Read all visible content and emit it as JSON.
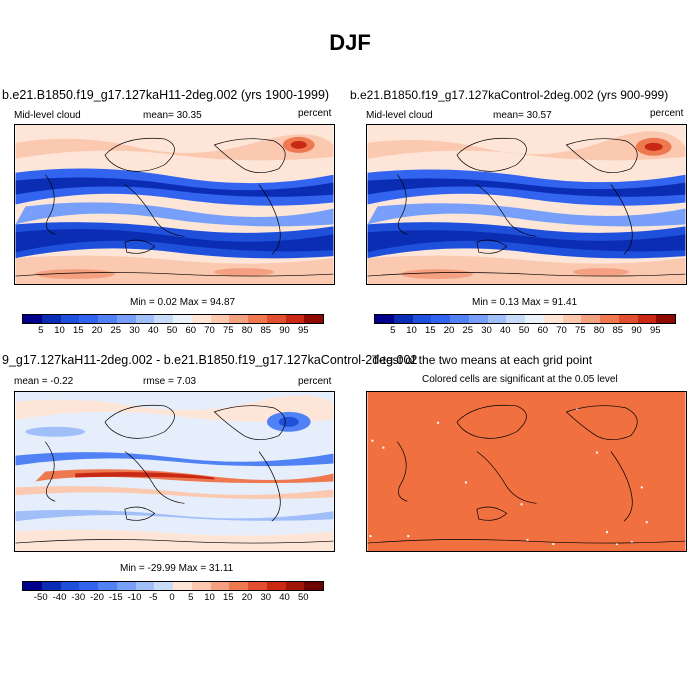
{
  "figure": {
    "title": "DJF"
  },
  "panels": {
    "left": {
      "title": "b.e21.B1850.f19_g17.127kaH11-2deg.002 (yrs 1900-1999)",
      "variable": "Mid-level cloud",
      "stat": "mean=  30.35",
      "units": "percent",
      "minmax": "Min =  0.02 Max =  94.87"
    },
    "right": {
      "title": "b.e21.B1850.f19_g17.127kaControl-2deg.002 (yrs 900-999)",
      "variable": "Mid-level cloud",
      "stat": "mean=  30.57",
      "units": "percent",
      "minmax": "Min =  0.13 Max =  91.41"
    },
    "diff": {
      "title": "9_g17.127kaH11-2deg.002 - b.e21.B1850.f19_g17.127kaControl-2deg.002",
      "mean": "mean =  -0.22",
      "rmse": "rmse =   7.03",
      "units": "percent",
      "minmax": "Min = -29.99 Max =  31.11"
    },
    "ttest": {
      "title": "T-test of the two means at each grid point",
      "subtitle": "Colored cells are significant at the 0.05 level"
    }
  },
  "colorbars": {
    "absolute": {
      "labels": [
        "5",
        "10",
        "15",
        "20",
        "25",
        "30",
        "40",
        "50",
        "60",
        "70",
        "75",
        "80",
        "85",
        "90",
        "95"
      ],
      "colors": [
        "#00008b",
        "#0a2db4",
        "#1e50dc",
        "#3264f0",
        "#5082f5",
        "#78a0fa",
        "#a0bef8",
        "#c8dcf8",
        "#ebf2fc",
        "#fde6d8",
        "#fbc8b0",
        "#f5a080",
        "#ee7850",
        "#e05030",
        "#c82814",
        "#8c0a00"
      ]
    },
    "difference": {
      "labels": [
        "-50",
        "-40",
        "-30",
        "-20",
        "-15",
        "-10",
        "-5",
        "0",
        "5",
        "10",
        "15",
        "20",
        "30",
        "40",
        "50"
      ],
      "colors": [
        "#00008b",
        "#0a2db4",
        "#1e50dc",
        "#3264f0",
        "#5082f5",
        "#78a0fa",
        "#a0bef8",
        "#c8dcf8",
        "#fde6d8",
        "#fbc8b0",
        "#f5a080",
        "#ee7850",
        "#e05030",
        "#c82814",
        "#a01408",
        "#6e0000"
      ]
    },
    "ttest_color": "#f07040"
  },
  "chart_data": [
    {
      "type": "heatmap",
      "title": "b.e21.B1850.f19_g17.127kaH11-2deg.002 (yrs 1900-1999)",
      "variable": "Mid-level cloud",
      "units": "percent",
      "mean": 30.35,
      "min": 0.02,
      "max": 94.87,
      "contour_levels": [
        5,
        10,
        15,
        20,
        25,
        30,
        40,
        50,
        60,
        70,
        75,
        80,
        85,
        90,
        95
      ]
    },
    {
      "type": "heatmap",
      "title": "b.e21.B1850.f19_g17.127kaControl-2deg.002 (yrs 900-999)",
      "variable": "Mid-level cloud",
      "units": "percent",
      "mean": 30.57,
      "min": 0.13,
      "max": 91.41,
      "contour_levels": [
        5,
        10,
        15,
        20,
        25,
        30,
        40,
        50,
        60,
        70,
        75,
        80,
        85,
        90,
        95
      ]
    },
    {
      "type": "heatmap",
      "title": "9_g17.127kaH11-2deg.002 - b.e21.B1850.f19_g17.127kaControl-2deg.002",
      "units": "percent",
      "mean": -0.22,
      "rmse": 7.03,
      "min": -29.99,
      "max": 31.11,
      "contour_levels": [
        -50,
        -40,
        -30,
        -20,
        -15,
        -10,
        -5,
        0,
        5,
        10,
        15,
        20,
        30,
        40,
        50
      ]
    },
    {
      "type": "heatmap",
      "title": "T-test of the two means at each grid point",
      "subtitle": "Colored cells are significant at the 0.05 level"
    }
  ]
}
